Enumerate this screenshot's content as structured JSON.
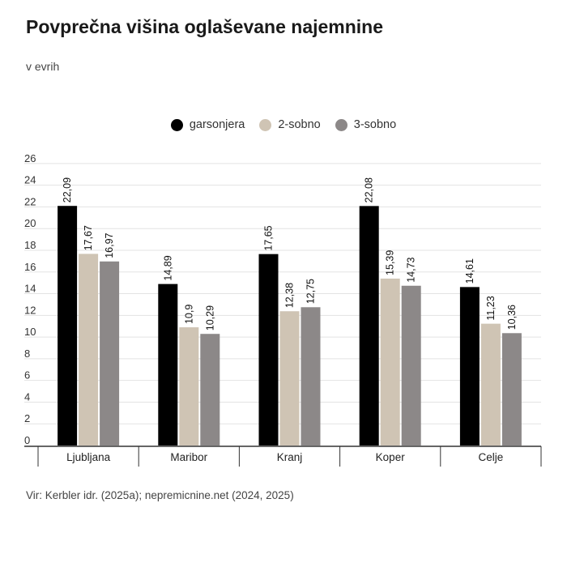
{
  "title": "Povprečna višina oglaševane najemnine",
  "subtitle": "v evrih",
  "source": "Vir: Kerbler idr. (2025a); nepremicnine.net (2024, 2025)",
  "chart_data": {
    "type": "bar",
    "categories": [
      "Ljubljana",
      "Maribor",
      "Kranj",
      "Koper",
      "Celje"
    ],
    "series": [
      {
        "name": "garsonjera",
        "color": "#000000",
        "values": [
          22.09,
          14.89,
          17.65,
          22.08,
          14.61
        ],
        "labels": [
          "22,09",
          "14,89",
          "17,65",
          "22,08",
          "14,61"
        ]
      },
      {
        "name": "2-sobno",
        "color": "#cfc4b4",
        "values": [
          17.67,
          10.9,
          12.38,
          15.39,
          11.23
        ],
        "labels": [
          "17,67",
          "10,9",
          "12,38",
          "15,39",
          "11,23"
        ]
      },
      {
        "name": "3-sobno",
        "color": "#8c8888",
        "values": [
          16.97,
          10.29,
          12.75,
          14.73,
          10.36
        ],
        "labels": [
          "16,97",
          "10,29",
          "12,75",
          "14,73",
          "10,36"
        ]
      }
    ],
    "yticks": [
      "0",
      "2",
      "4",
      "6",
      "8",
      "10",
      "12",
      "14",
      "16",
      "18",
      "20",
      "22",
      "24",
      "26"
    ],
    "ylim": [
      0,
      26
    ],
    "grid": true,
    "legend_position": "top-center"
  }
}
